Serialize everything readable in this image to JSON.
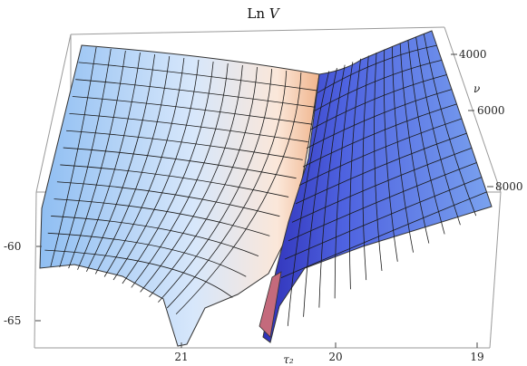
{
  "chart_data": {
    "type": "surface",
    "title": {
      "prefix": "Ln",
      "variable": "V"
    },
    "x_axis": {
      "label": "τ₂",
      "ticks": [
        "21",
        "20",
        "19"
      ]
    },
    "y_axis": {
      "label": "ν",
      "ticks": [
        "4000",
        "6000",
        "8000"
      ]
    },
    "z_axis": {
      "label": "",
      "ticks": [
        "-60",
        "-65"
      ]
    },
    "ranges": {
      "tau2": [
        19,
        21.5
      ],
      "nu": [
        3500,
        8500
      ],
      "lnV": [
        -67,
        -55
      ]
    },
    "surface_note": "valley of Ln V near τ₂ ≈ 20.1 deepening toward large ν",
    "grid": true,
    "colors": {
      "blue": "#4f6fe6",
      "light": "#eef3ff",
      "peach": "#f1c29b",
      "box": "#9a9a9a"
    }
  }
}
